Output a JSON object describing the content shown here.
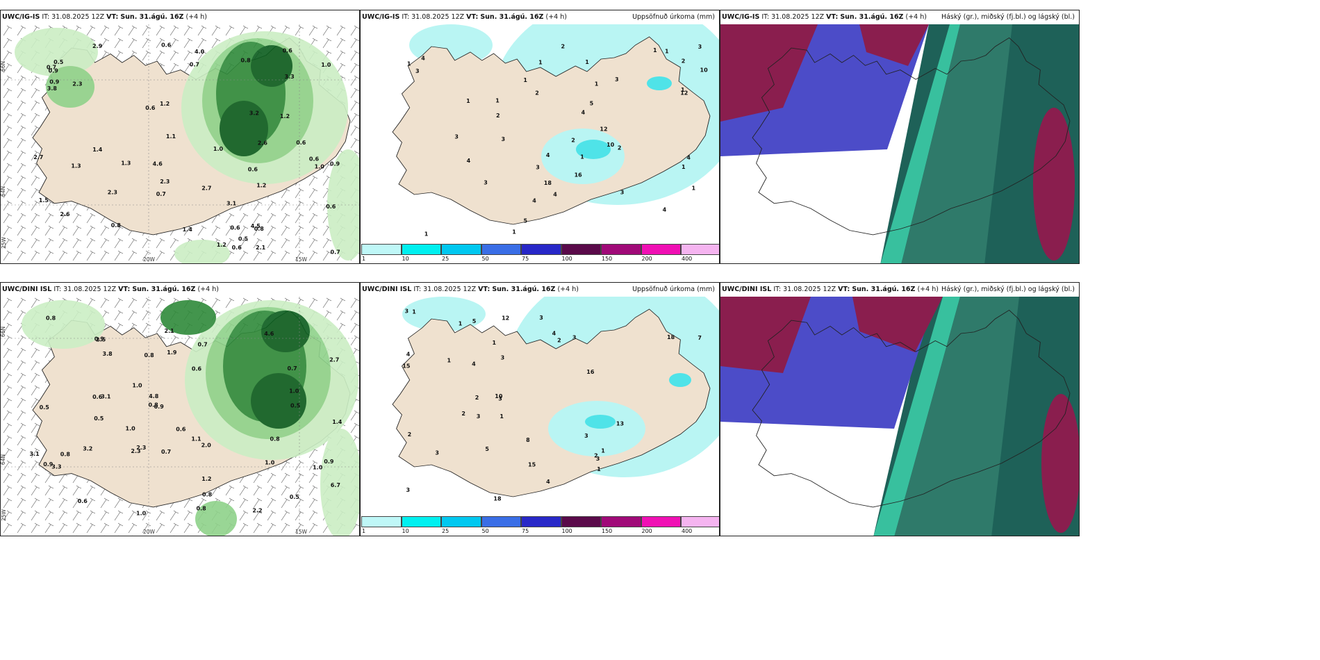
{
  "colors": {
    "land": "#efe1cf",
    "green_light": "#cbeec4",
    "green_mid": "#8fd28a",
    "green_dark": "#2f8a3a",
    "green_deep": "#0b5d1e",
    "cyan_light": "#b9f5f3",
    "cyan": "#4fe3e8",
    "cloud_high": "#1a5e55",
    "cloud_mid": "#4c4cc8",
    "cloud_low": "#8a1e4e"
  },
  "panels": {
    "top_left": {
      "model": "UWC/IG-IS",
      "it_label": "IT:",
      "it": "31.08.2025 12Z",
      "vt_label": "VT:",
      "vt": "Sun. 31.ágú. 16Z",
      "lead": "(+4 h)",
      "title": "",
      "labels": [
        "0.6",
        "0.7",
        "0.6",
        "1.1",
        "0.5",
        "0.8",
        "1.2",
        "1.2",
        "0.7",
        "0.6",
        "0.6",
        "0.7",
        "0.6",
        "2.3",
        "2.1",
        "3.2",
        "2.6",
        "3.3",
        "4.6",
        "4.5",
        "1.5",
        "1.3",
        "0.8",
        "0.6",
        "1.2",
        "0.9",
        "0.9",
        "0.9",
        "1.0",
        "2.7",
        "1.0",
        "0.6",
        "1.4",
        "0.5",
        "1.3",
        "2.9",
        "3.1",
        "3.8",
        "2.7",
        "1.2",
        "0.6",
        "2.3",
        "4.0",
        "1.4",
        "0.8",
        "2.3",
        "2.6",
        "0.6",
        "1.0",
        "0.7"
      ]
    },
    "top_mid": {
      "model": "UWC/IG-IS",
      "it_label": "IT:",
      "it": "31.08.2025 12Z",
      "vt_label": "VT:",
      "vt": "Sun. 31.ágú. 16Z",
      "lead": "(+4 h)",
      "title": "Uppsöfnuð úrkoma (mm)",
      "labels": [
        "4",
        "4",
        "4",
        "1",
        "1",
        "1",
        "2",
        "1",
        "1",
        "2",
        "3",
        "3",
        "1",
        "1",
        "3",
        "3",
        "2",
        "1",
        "1",
        "1",
        "5",
        "2",
        "5",
        "4",
        "12",
        "4",
        "3",
        "16",
        "12",
        "10",
        "3",
        "3",
        "2",
        "4",
        "1",
        "2",
        "1",
        "1",
        "1",
        "3",
        "4",
        "4",
        "10",
        "18",
        "1"
      ]
    },
    "top_right": {
      "model": "UWC/IG-IS",
      "it_label": "IT:",
      "it": "31.08.2025 12Z",
      "vt_label": "VT:",
      "vt": "Sun. 31.ágú. 16Z",
      "lead": "(+4 h)",
      "title": "Háský (gr.), miðský (fj.bl.) og lágský (bl.)"
    },
    "bot_left": {
      "model": "UWC/DINI ISL",
      "it_label": "IT:",
      "it": "31.08.2025 12Z",
      "vt_label": "VT:",
      "vt": "Sun. 31.ágú. 16Z",
      "lead": "(+4 h)",
      "title": "",
      "labels": [
        "1.4",
        "2.3",
        "0.7",
        "1.0",
        "0.5",
        "0.6",
        "2.0",
        "2.2",
        "2.5",
        "3.1",
        "3.8",
        "4.8",
        "6.7",
        "3.3",
        "2.3",
        "1.0",
        "1.2",
        "0.8",
        "1.0",
        "0.9",
        "0.5",
        "0.7",
        "0.5",
        "0.8",
        "0.8",
        "1.0",
        "1.9",
        "1.0",
        "4.6",
        "3.1",
        "0.5",
        "0.8",
        "0.8",
        "3.2",
        "2.7",
        "2.1",
        "1.1",
        "0.9",
        "0.6",
        "0.7",
        "0.6",
        "0.8",
        "0.9",
        "0.8",
        "1.0",
        "0.6",
        "0.9"
      ]
    },
    "bot_mid": {
      "model": "UWC/DINI ISL",
      "it_label": "IT:",
      "it": "31.08.2025 12Z",
      "vt_label": "VT:",
      "vt": "Sun. 31.ágú. 16Z",
      "lead": "(+4 h)",
      "title": "Uppsöfnuð úrkoma (mm)",
      "labels": [
        "4",
        "5",
        "4",
        "3",
        "3",
        "13",
        "8",
        "2",
        "1",
        "1",
        "1",
        "3",
        "2",
        "3",
        "3",
        "2",
        "2",
        "15",
        "4",
        "4",
        "1",
        "18",
        "12",
        "15",
        "7",
        "10",
        "16",
        "18",
        "5",
        "3",
        "3",
        "3",
        "3",
        "1",
        "2",
        "1",
        "1",
        "3"
      ]
    },
    "bot_right": {
      "model": "UWC/DINI ISL",
      "it_label": "IT:",
      "it": "31.08.2025 12Z",
      "vt_label": "VT:",
      "vt": "Sun. 31.ágú. 16Z",
      "lead": "(+4 h)",
      "title": "Háský (gr.), miðský (fj.bl.) og lágský (bl.)"
    }
  },
  "axes": {
    "lon": [
      "20W",
      "15W"
    ],
    "lat": [
      "66N",
      "64N",
      "25W"
    ]
  },
  "legend": {
    "colors": [
      "#bff7f7",
      "#00f0f0",
      "#00c8f0",
      "#3a6ee6",
      "#2828c8",
      "#5a0a4a",
      "#a00a78",
      "#f010b4",
      "#f5b4f0"
    ],
    "labels": [
      "1",
      "10",
      "25",
      "50",
      "75",
      "100",
      "150",
      "200",
      "400"
    ]
  }
}
